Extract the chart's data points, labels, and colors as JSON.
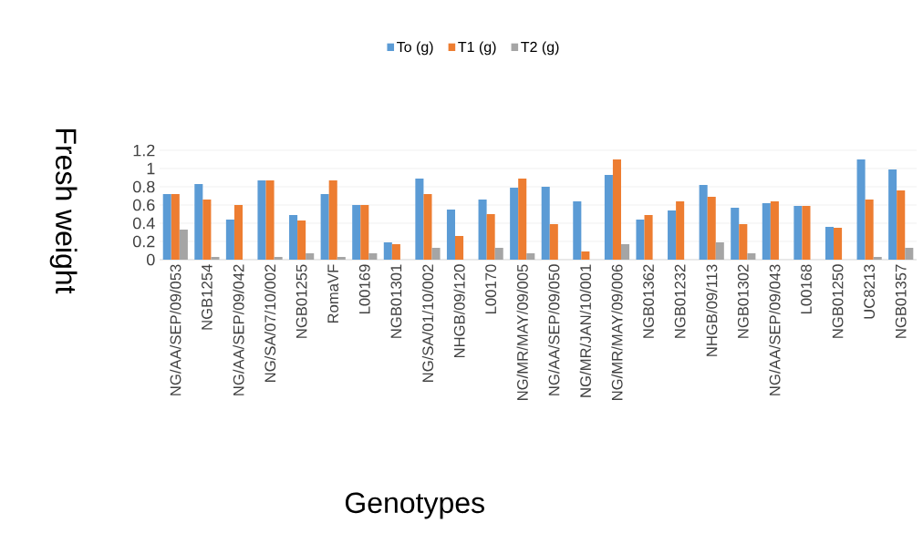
{
  "chart_data": {
    "type": "bar",
    "xlabel": "Genotypes",
    "ylabel": "Fresh weight",
    "categories": [
      "NG/AA/SEP/09/053",
      "NGB1254",
      "NG/AA/SEP/09/042",
      "NG/SA/07/10/002",
      "NGB01255",
      "RomaVF",
      "L00169",
      "NGB01301",
      "NG/SA/01/10/002",
      "NHGB/09/120",
      "L00170",
      "NG/MR/MAY/09/005",
      "NG/AA/SEP/09/050",
      "NG/MR/JAN/10/001",
      "NG/MR/MAY/09/006",
      "NGB01362",
      "NGB01232",
      "NHGB/09/113",
      "NGB01302",
      "NG/AA/SEP/09/043",
      "L00168",
      "NGB01250",
      "UC8213",
      "NGB01357"
    ],
    "series": [
      {
        "name": "To (g)",
        "color": "#5b9bd5",
        "values": [
          0.72,
          0.83,
          0.44,
          0.87,
          0.49,
          0.72,
          0.6,
          0.19,
          0.89,
          0.55,
          0.66,
          0.79,
          0.8,
          0.64,
          0.93,
          0.44,
          0.54,
          0.82,
          0.57,
          0.62,
          0.59,
          0.36,
          1.1,
          0.99
        ]
      },
      {
        "name": "T1 (g)",
        "color": "#ed7d31",
        "values": [
          0.72,
          0.66,
          0.6,
          0.87,
          0.43,
          0.87,
          0.6,
          0.17,
          0.72,
          0.26,
          0.5,
          0.89,
          0.39,
          0.09,
          1.1,
          0.49,
          0.64,
          0.69,
          0.39,
          0.64,
          0.59,
          0.35,
          0.66,
          0.76
        ]
      },
      {
        "name": "T2 (g)",
        "color": "#a5a5a5",
        "values": [
          0.33,
          0.03,
          null,
          0.03,
          0.07,
          0.03,
          0.07,
          null,
          0.13,
          null,
          0.13,
          0.07,
          null,
          null,
          0.17,
          null,
          null,
          0.19,
          0.07,
          null,
          null,
          null,
          0.03,
          0.13
        ]
      }
    ],
    "ylim": [
      0,
      1.2
    ],
    "yticks": [
      0,
      0.2,
      0.4,
      0.6,
      0.8,
      1,
      1.2
    ],
    "grid": "y",
    "legend": "top"
  }
}
